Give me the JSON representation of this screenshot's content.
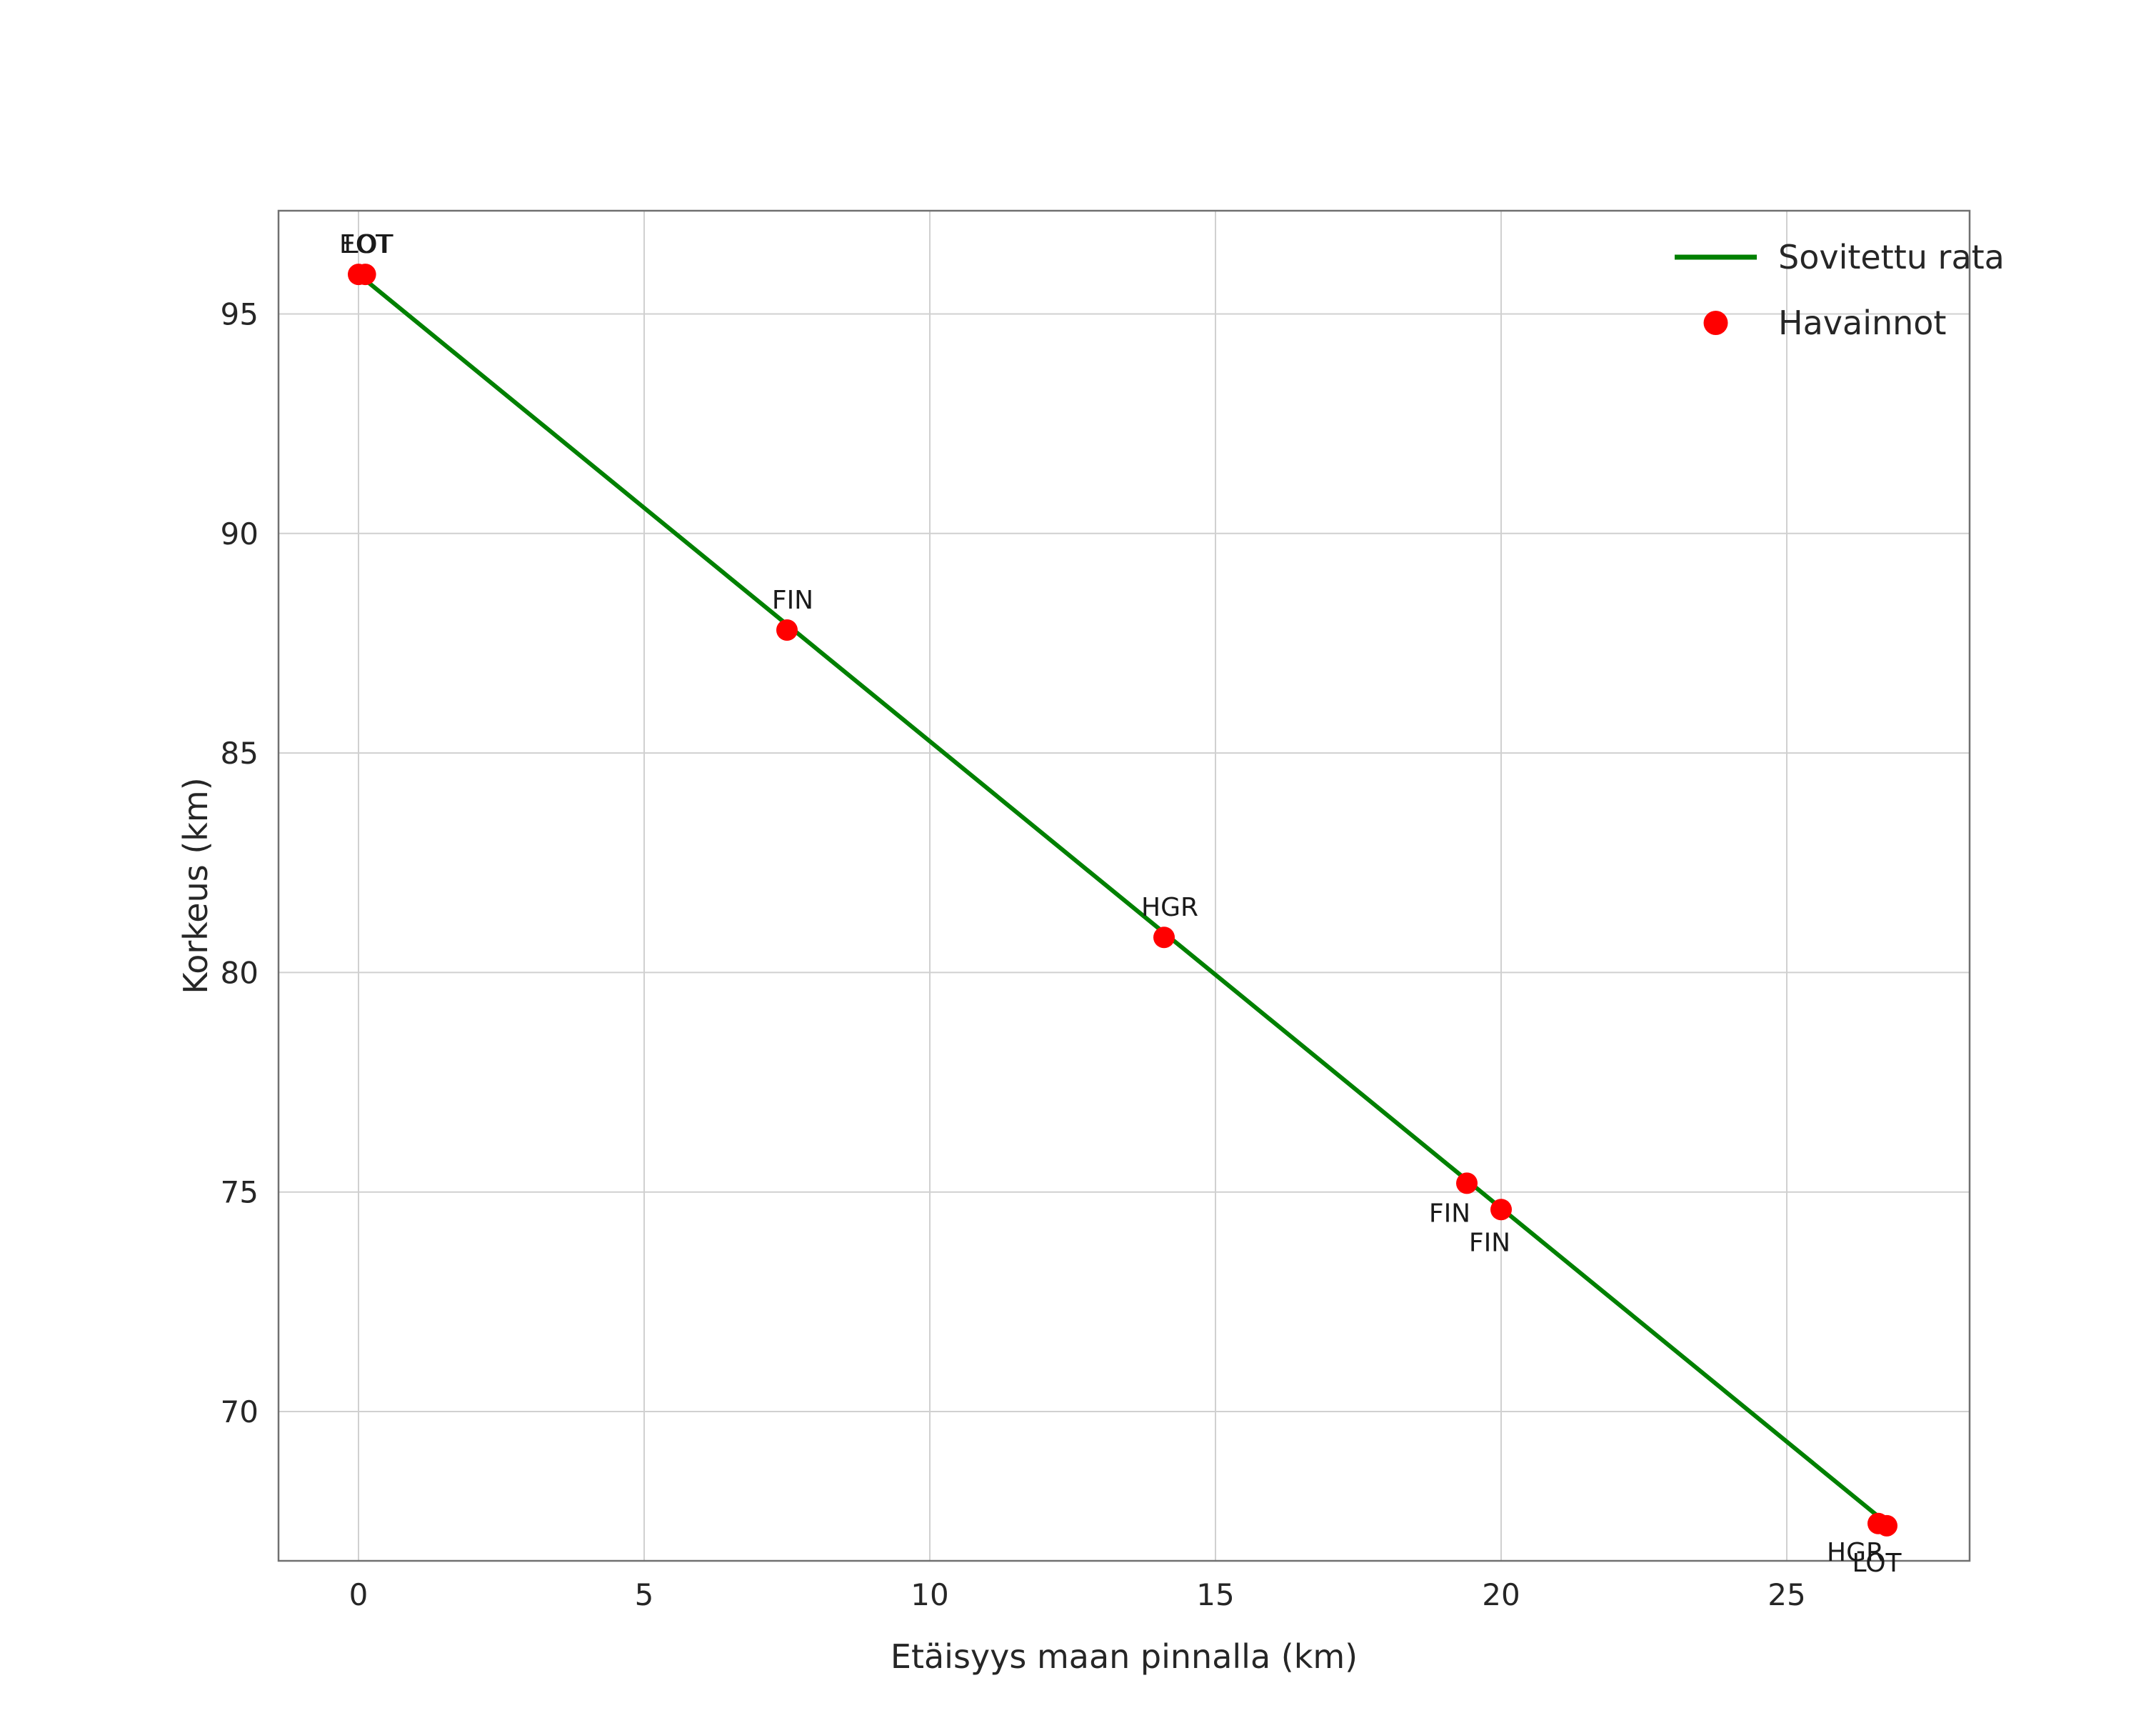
{
  "chart_data": {
    "type": "line",
    "title": "",
    "xlabel": "Etäisyys maan pinnalla (km)",
    "ylabel": "Korkeus (km)",
    "xlim": [
      -1.4,
      28.2
    ],
    "ylim": [
      66.6,
      97.35
    ],
    "xticks": [
      0,
      5,
      10,
      15,
      20,
      25
    ],
    "yticks": [
      70,
      75,
      80,
      85,
      90,
      95
    ],
    "grid": true,
    "legend_position": "upper-right",
    "colors": {
      "line": "#008000",
      "marker": "#ff0000",
      "grid": "#d0d0d0",
      "spine": "#707070",
      "text": "#262626"
    },
    "series": [
      {
        "name": "Sovitettu rata",
        "type": "line",
        "color": "#008000",
        "x": [
          0.0,
          26.8
        ],
        "y": [
          95.9,
          67.4
        ]
      },
      {
        "name": "Havainnot",
        "type": "scatter",
        "color": "#ff0000",
        "points": [
          {
            "x": 0.0,
            "y": 95.9,
            "label": "LOT",
            "label_dx": 14,
            "label_dy": -30
          },
          {
            "x": 0.12,
            "y": 95.9,
            "label": "EOT",
            "label_dx": 0,
            "label_dy": -30
          },
          {
            "x": 7.5,
            "y": 87.8,
            "label": "FIN",
            "label_dx": 8,
            "label_dy": -30
          },
          {
            "x": 14.1,
            "y": 80.8,
            "label": "HGR",
            "label_dx": 8,
            "label_dy": -30
          },
          {
            "x": 19.4,
            "y": 75.2,
            "label": "FIN",
            "label_dx": -24,
            "label_dy": 54
          },
          {
            "x": 20.0,
            "y": 74.6,
            "label": "FIN",
            "label_dx": -16,
            "label_dy": 58
          },
          {
            "x": 26.6,
            "y": 67.45,
            "label": "HGR",
            "label_dx": -32,
            "label_dy": 52
          },
          {
            "x": 26.75,
            "y": 67.4,
            "label": "LOT",
            "label_dx": -14,
            "label_dy": 64
          }
        ]
      }
    ],
    "legend": [
      {
        "label": "Sovitettu rata",
        "swatch": "line",
        "color": "#008000"
      },
      {
        "label": "Havainnot",
        "swatch": "dot",
        "color": "#ff0000"
      }
    ]
  }
}
